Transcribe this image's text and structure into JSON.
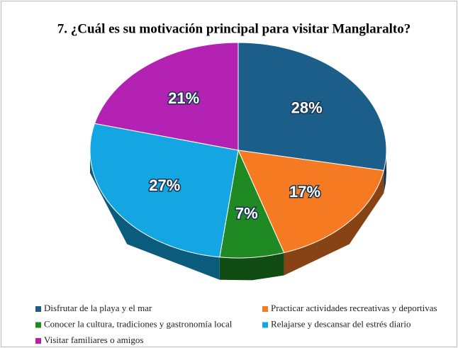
{
  "chart_data": {
    "type": "pie",
    "title": "7. ¿Cuál es su motivación principal para visitar Manglaralto?",
    "categories": [
      "Disfrutar de la playa y el mar",
      "Practicar actividades recreativas y deportivas",
      "Conocer la cultura, tradiciones y gastronomía local",
      "Relajarse y descansar del estrés diario",
      "Visitar familiares o amigos"
    ],
    "values": [
      28,
      17,
      7,
      27,
      21
    ],
    "value_labels": [
      "28%",
      "17%",
      "7%",
      "27%",
      "21%"
    ],
    "colors": [
      "#1b5e8a",
      "#f57a22",
      "#1f8a24",
      "#14a6e3",
      "#b322b3"
    ]
  }
}
